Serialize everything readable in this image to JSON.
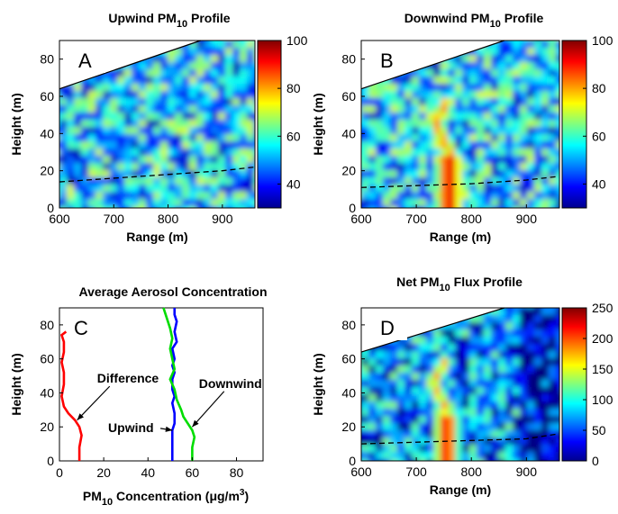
{
  "figure": {
    "panels": [
      {
        "id": "A",
        "type": "heatmap",
        "title": {
          "pre": "Upwind PM",
          "sub": "10",
          "post": " Profile"
        },
        "letter": "A",
        "xlabel": "Range (m)",
        "ylabel": "Height (m)",
        "xlim": [
          600,
          960
        ],
        "ylim": [
          0,
          90
        ],
        "xticks": [
          600,
          700,
          800,
          900
        ],
        "yticks": [
          0,
          20,
          40,
          60,
          80
        ],
        "colorbar": {
          "min": 30,
          "max": 100,
          "ticks": [
            40,
            60,
            80,
            100
          ]
        },
        "boundary_line": [
          [
            600,
            64
          ],
          [
            860,
            90
          ]
        ],
        "dashed_line": [
          [
            600,
            14
          ],
          [
            700,
            16
          ],
          [
            800,
            18
          ],
          [
            900,
            20
          ],
          [
            960,
            22
          ]
        ],
        "mean_level": 52,
        "plume": null
      },
      {
        "id": "B",
        "type": "heatmap",
        "title": {
          "pre": "Downwind PM",
          "sub": "10",
          "post": " Profile"
        },
        "letter": "B",
        "xlabel": "Range (m)",
        "ylabel": "Height (m)",
        "xlim": [
          600,
          960
        ],
        "ylim": [
          0,
          90
        ],
        "xticks": [
          600,
          700,
          800,
          900
        ],
        "yticks": [
          0,
          20,
          40,
          60,
          80
        ],
        "colorbar": {
          "min": 30,
          "max": 100,
          "ticks": [
            40,
            60,
            80,
            100
          ]
        },
        "boundary_line": [
          [
            600,
            64
          ],
          [
            860,
            90
          ]
        ],
        "dashed_line": [
          [
            600,
            11
          ],
          [
            700,
            12
          ],
          [
            800,
            13
          ],
          [
            900,
            15
          ],
          [
            960,
            17
          ]
        ],
        "mean_level": 52,
        "plume": {
          "peak": 98,
          "base_center": 760,
          "top": 60
        }
      },
      {
        "id": "D",
        "type": "heatmap",
        "title": {
          "pre": "Net PM",
          "sub": "10",
          "post": " Flux Profile"
        },
        "letter": "D",
        "xlabel": "Range (m)",
        "ylabel": "Height (m)",
        "xlim": [
          600,
          960
        ],
        "ylim": [
          0,
          90
        ],
        "xticks": [
          600,
          700,
          800,
          900
        ],
        "yticks": [
          0,
          20,
          40,
          60,
          80
        ],
        "colorbar": {
          "min": 0,
          "max": 250,
          "ticks": [
            0,
            50,
            100,
            150,
            200,
            250
          ]
        },
        "boundary_line": [
          [
            600,
            64
          ],
          [
            860,
            90
          ]
        ],
        "dashed_line": [
          [
            600,
            10
          ],
          [
            700,
            11
          ],
          [
            800,
            12
          ],
          [
            900,
            13
          ],
          [
            960,
            16
          ]
        ],
        "mean_level": 60,
        "plume": {
          "peak": 235,
          "base_center": 755,
          "top": 62
        }
      }
    ],
    "line_panel": {
      "id": "C",
      "type": "line",
      "title": "Average Aerosol Concentration",
      "letter": "C",
      "xlabel": {
        "pre": "PM",
        "sub": "10",
        "post": " Concentration (μg/m",
        "sup": "3",
        "end": ")"
      },
      "ylabel": "Height (m)",
      "xlim": [
        0,
        92
      ],
      "ylim": [
        0,
        90
      ],
      "xticks": [
        0,
        20,
        40,
        60,
        80
      ],
      "yticks": [
        0,
        20,
        40,
        60,
        80
      ],
      "series": [
        {
          "name": "Difference",
          "color": "#ff0000",
          "points": [
            [
              9,
              0
            ],
            [
              9,
              8
            ],
            [
              10,
              15
            ],
            [
              9,
              20
            ],
            [
              7,
              24
            ],
            [
              4,
              28
            ],
            [
              2,
              32
            ],
            [
              1,
              38
            ],
            [
              2,
              45
            ],
            [
              2,
              52
            ],
            [
              1,
              58
            ],
            [
              2,
              64
            ],
            [
              2,
              70
            ],
            [
              1,
              74
            ],
            [
              3,
              76
            ]
          ]
        },
        {
          "name": "Upwind",
          "color": "#0000ff",
          "points": [
            [
              51,
              0
            ],
            [
              51,
              8
            ],
            [
              51,
              14
            ],
            [
              51,
              18
            ],
            [
              52,
              22
            ],
            [
              52,
              28
            ],
            [
              51,
              34
            ],
            [
              52,
              38
            ],
            [
              51,
              42
            ],
            [
              51,
              48
            ],
            [
              52,
              52
            ],
            [
              51,
              56
            ],
            [
              52,
              60
            ],
            [
              51,
              66
            ],
            [
              53,
              70
            ],
            [
              52,
              76
            ],
            [
              53,
              82
            ],
            [
              52,
              86
            ],
            [
              52,
              90
            ]
          ]
        },
        {
          "name": "Downwind",
          "color": "#00dd00",
          "points": [
            [
              60,
              0
            ],
            [
              60,
              8
            ],
            [
              61,
              14
            ],
            [
              60,
              18
            ],
            [
              58,
              22
            ],
            [
              56,
              26
            ],
            [
              55,
              30
            ],
            [
              53,
              36
            ],
            [
              52,
              42
            ],
            [
              50,
              48
            ],
            [
              52,
              54
            ],
            [
              51,
              60
            ],
            [
              50,
              66
            ],
            [
              51,
              72
            ],
            [
              50,
              78
            ],
            [
              49,
              82
            ],
            [
              48,
              86
            ],
            [
              47,
              90
            ]
          ]
        }
      ],
      "annotations": [
        {
          "label": "Difference",
          "text_at": [
            17,
            46
          ],
          "arrow_to": [
            8,
            24
          ]
        },
        {
          "label": "Upwind",
          "text_at": [
            22,
            17
          ],
          "arrow_to": [
            51,
            18
          ]
        },
        {
          "label": "Downwind",
          "text_at": [
            63,
            43
          ],
          "arrow_to": [
            60,
            20
          ]
        }
      ]
    }
  }
}
